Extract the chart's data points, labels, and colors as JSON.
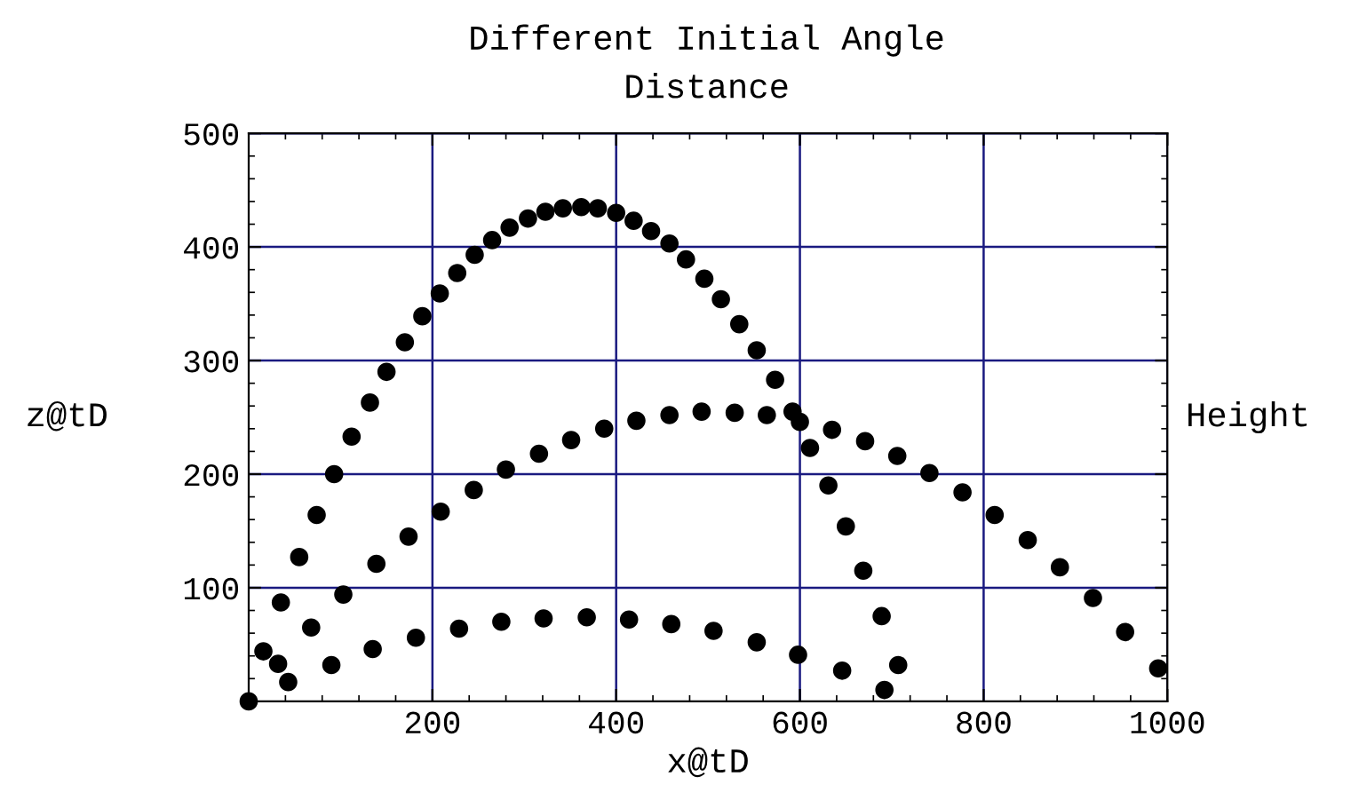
{
  "chart_data": {
    "type": "scatter",
    "title": "Different Initial Angle",
    "subtitle": "Distance",
    "xlabel": "x@tD",
    "ylabel": "z@tD",
    "y2label": "Height",
    "xlim": [
      0,
      1000
    ],
    "ylim": [
      0,
      500
    ],
    "xticks": [
      200,
      400,
      600,
      800,
      1000
    ],
    "yticks": [
      100,
      200,
      300,
      400,
      500
    ],
    "grid": true,
    "marker": "circle",
    "series": [
      {
        "color": "#000000",
        "x": [
          0,
          16,
          35,
          55,
          74,
          93,
          112,
          132,
          150,
          170,
          189,
          208,
          227,
          246,
          265,
          284,
          304,
          323,
          342,
          362,
          380,
          400,
          419,
          438,
          458,
          476,
          496,
          514,
          534,
          553,
          573,
          592,
          611,
          631,
          650,
          669,
          689,
          707
        ],
        "values": [
          0,
          44,
          87,
          127,
          164,
          200,
          233,
          263,
          290,
          316,
          339,
          359,
          377,
          393,
          406,
          417,
          425,
          431,
          434,
          435,
          434,
          430,
          423,
          414,
          403,
          389,
          372,
          354,
          332,
          309,
          283,
          255,
          223,
          190,
          154,
          115,
          75,
          32
        ]
      },
      {
        "color": "#000000",
        "x": [
          32,
          68,
          103,
          139,
          174,
          209,
          245,
          280,
          316,
          351,
          387,
          422,
          458,
          493,
          529,
          564,
          600,
          635,
          671,
          706,
          741,
          777,
          812,
          848,
          883,
          919,
          954,
          990
        ],
        "values": [
          33,
          65,
          94,
          121,
          145,
          167,
          186,
          204,
          218,
          230,
          240,
          247,
          252,
          255,
          254,
          252,
          246,
          239,
          229,
          216,
          201,
          184,
          164,
          142,
          118,
          91,
          61,
          29
        ]
      },
      {
        "color": "#000000",
        "x": [
          43,
          90,
          135,
          182,
          229,
          275,
          321,
          368,
          414,
          460,
          506,
          553,
          598,
          646,
          692
        ],
        "values": [
          17,
          32,
          46,
          56,
          64,
          70,
          73,
          74,
          72,
          68,
          62,
          52,
          41,
          27,
          10
        ]
      }
    ]
  }
}
